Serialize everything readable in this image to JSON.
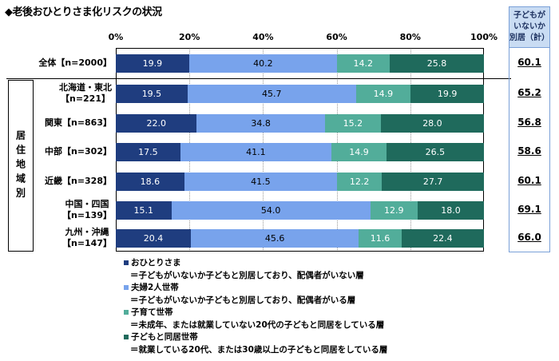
{
  "chart_data": {
    "type": "bar",
    "orientation": "horizontal",
    "stacked": true,
    "title": "◆老後おひとりさま化リスクの状況",
    "xlim": [
      0,
      100
    ],
    "x_ticks": [
      "0%",
      "20%",
      "40%",
      "60%",
      "80%",
      "100%"
    ],
    "grid": true,
    "categories": [
      "全体【n=2000】",
      "北海道・東北【n=221】",
      "関東【n=863】",
      "中部【n=302】",
      "近畿【n=328】",
      "中国・四国【n=139】",
      "九州・沖縄【n=147】"
    ],
    "category_lines": [
      [
        "全体【n=2000】"
      ],
      [
        "北海道・東北",
        "【n=221】"
      ],
      [
        "関東【n=863】"
      ],
      [
        "中部【n=302】"
      ],
      [
        "近畿【n=328】"
      ],
      [
        "中国・四国",
        "【n=139】"
      ],
      [
        "九州・沖縄",
        "【n=147】"
      ]
    ],
    "group_label": "居住地域別",
    "series": [
      {
        "name": "おひとりさま",
        "description": "＝子どもがいないか子どもと別居しており、配偶者がいない層",
        "color": "#1f3d7f",
        "values": [
          19.9,
          19.5,
          22.0,
          17.5,
          18.6,
          15.1,
          20.4
        ]
      },
      {
        "name": "夫婦2人世帯",
        "description": "＝子どもがいないか子どもと別居しており、配偶者がいる層",
        "color": "#78a3ec",
        "values": [
          40.2,
          45.7,
          34.8,
          41.1,
          41.5,
          54.0,
          45.6
        ]
      },
      {
        "name": "子育て世帯",
        "description": "＝未成年、または就業していない20代の子どもと同居をしている層",
        "color": "#52ad9a",
        "values": [
          14.2,
          14.9,
          15.2,
          14.9,
          12.2,
          12.9,
          11.6
        ]
      },
      {
        "name": "子どもと同居世帯",
        "description": "＝就業している20代、または30歳以上の子どもと同居をしている層",
        "color": "#1f6a5c",
        "values": [
          25.8,
          19.9,
          28.0,
          26.5,
          27.7,
          18.0,
          22.4
        ]
      }
    ],
    "legend_position": "bottom",
    "side_column": {
      "header": [
        "子どもが",
        "いないか",
        "別居（計）"
      ],
      "values": [
        "60.1",
        "65.2",
        "56.8",
        "58.6",
        "60.1",
        "69.1",
        "66.0"
      ]
    }
  }
}
